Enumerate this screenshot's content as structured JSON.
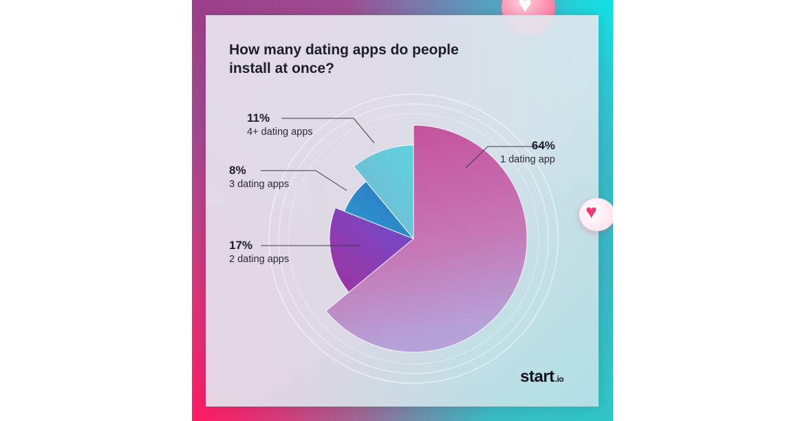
{
  "title": "How many dating apps do people install at once?",
  "brand": {
    "name": "start",
    "suffix": ".io"
  },
  "colors": {
    "one": "#c54c9a",
    "two": "#8a3fc0",
    "three": "#1ec79a",
    "four": "#5cc9d8"
  },
  "chart_data": {
    "type": "pie",
    "title": "How many dating apps do people install at once?",
    "slices": [
      {
        "label": "1 dating app",
        "value": 64,
        "percent_label": "64%"
      },
      {
        "label": "2 dating apps",
        "value": 17,
        "percent_label": "17%"
      },
      {
        "label": "3 dating apps",
        "value": 8,
        "percent_label": "8%"
      },
      {
        "label": "4+ dating apps",
        "value": 11,
        "percent_label": "11%"
      }
    ]
  },
  "decorations": [
    {
      "name": "heart-bubble-top",
      "icon": "heart-icon"
    },
    {
      "name": "heart-bubble-right",
      "icon": "heart-icon"
    }
  ]
}
